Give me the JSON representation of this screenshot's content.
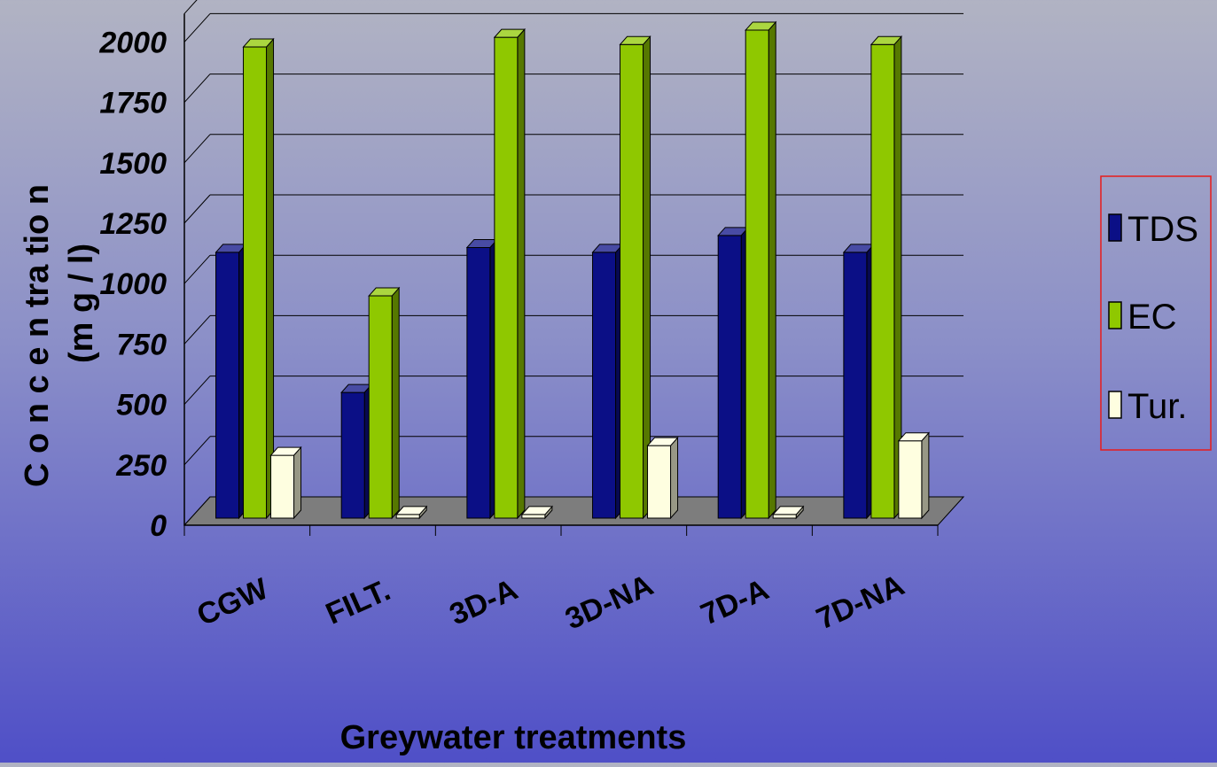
{
  "chart_data": {
    "type": "bar",
    "categories": [
      "CGW",
      "FILT.",
      "3D-A",
      "3D-NA",
      "7D-A",
      "7D-NA"
    ],
    "series": [
      {
        "name": "TDS",
        "values": [
          1100,
          520,
          1120,
          1100,
          1170,
          1100
        ],
        "color": "#0b0f86"
      },
      {
        "name": "EC",
        "values": [
          1950,
          920,
          1990,
          1960,
          2020,
          1960
        ],
        "color": "#8fc800"
      },
      {
        "name": "Tur.",
        "values": [
          260,
          15,
          15,
          300,
          15,
          320
        ],
        "color": "#fefee0"
      }
    ],
    "yticks": [
      "0",
      "250",
      "500",
      "750",
      "1000",
      "1250",
      "1500",
      "1750",
      "2000"
    ],
    "ylim": [
      0,
      2000
    ],
    "ylabel_line1": "C o n c e n tra tio n",
    "ylabel_line2": "(m g / l)",
    "xlabel": "Greywater treatments",
    "legend_position": "right",
    "grid": true,
    "style": "3d-bar"
  }
}
